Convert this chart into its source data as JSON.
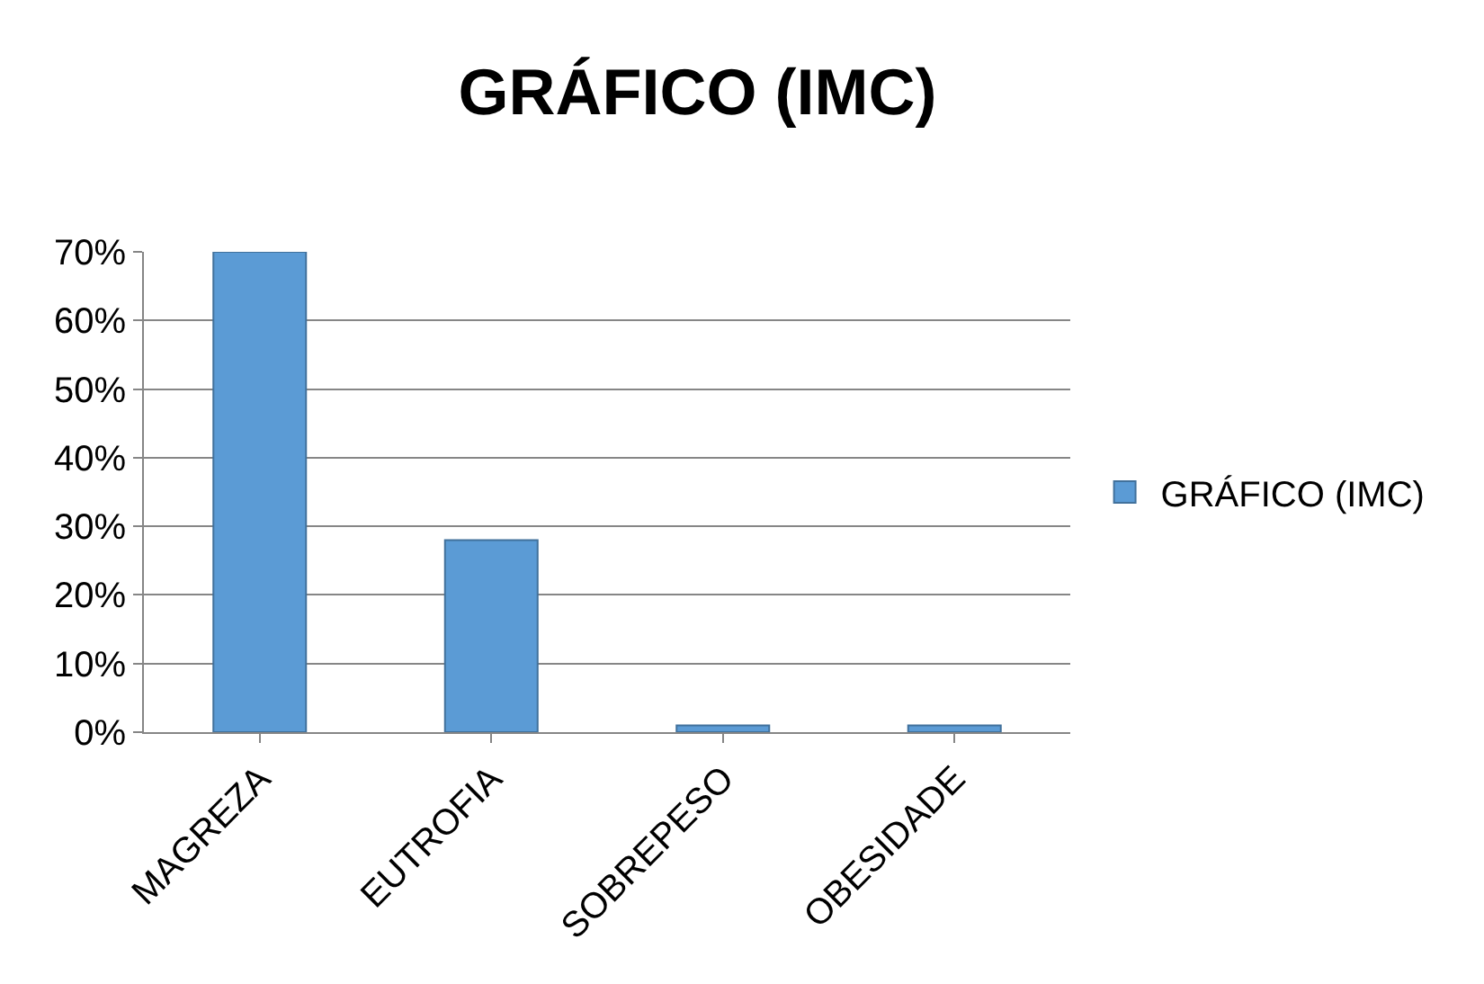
{
  "chart_data": {
    "type": "bar",
    "title": "GRÁFICO (IMC)",
    "categories": [
      "MAGREZA",
      "EUTROFIA",
      "SOBREPESO",
      "OBESIDADE"
    ],
    "series": [
      {
        "name": "GRÁFICO (IMC)",
        "color": "#5b9bd5",
        "values": [
          70,
          28,
          1,
          1
        ]
      }
    ],
    "ylim": [
      0,
      70
    ],
    "yticks": [
      {
        "value": 0,
        "label": "0%"
      },
      {
        "value": 10,
        "label": "10%"
      },
      {
        "value": 20,
        "label": "20%"
      },
      {
        "value": 30,
        "label": "30%"
      },
      {
        "value": 40,
        "label": "40%"
      },
      {
        "value": 50,
        "label": "50%"
      },
      {
        "value": 60,
        "label": "60%"
      },
      {
        "value": 70,
        "label": "70%"
      }
    ],
    "grid": "y",
    "legend": "right"
  }
}
